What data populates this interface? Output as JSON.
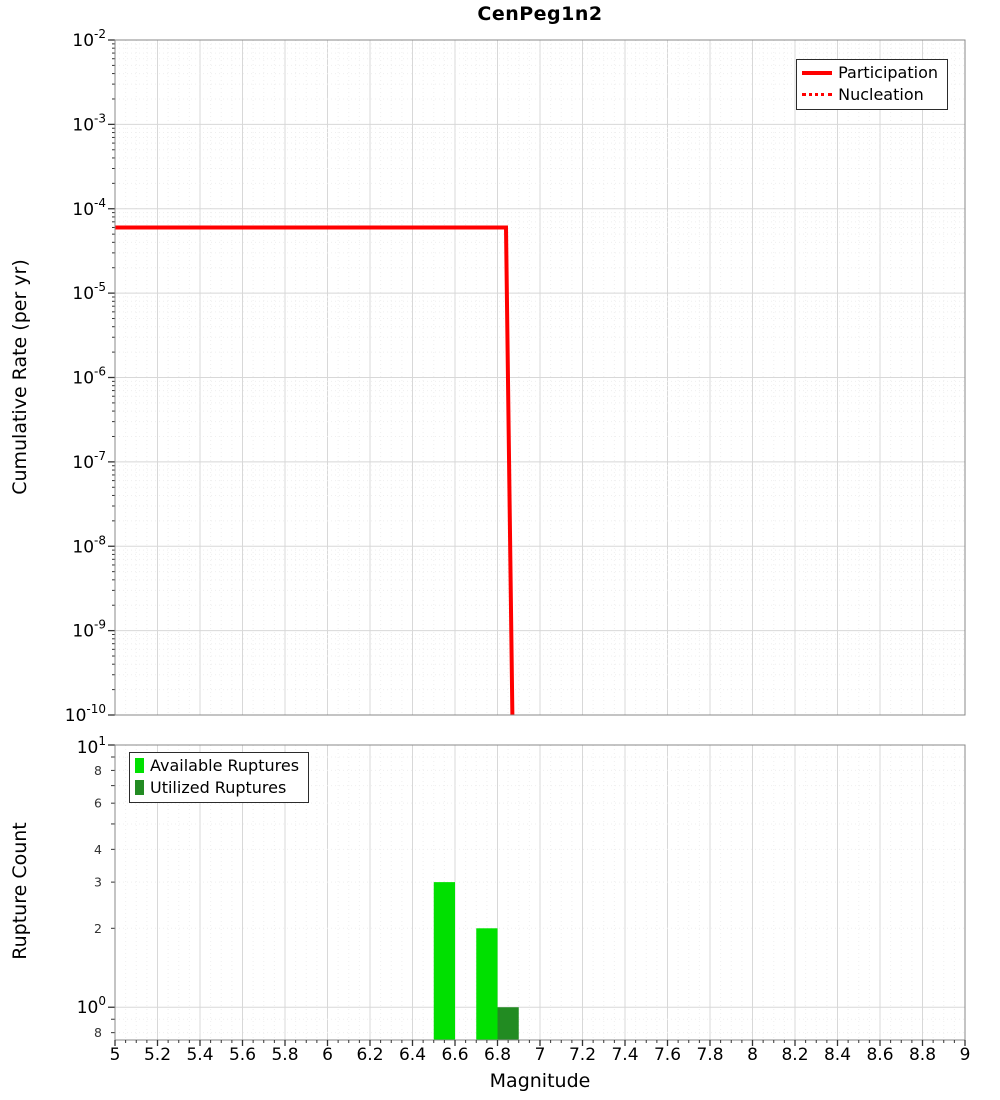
{
  "chart_data": [
    {
      "type": "line",
      "title": "CenPeg1n2",
      "ylabel": "Cumulative Rate (per yr)",
      "xlim": [
        5,
        9
      ],
      "y_scale": "log",
      "ylim": [
        1e-10,
        0.01
      ],
      "y_tick_exponents": [
        -2,
        -3,
        -4,
        -5,
        -6,
        -7,
        -8,
        -9,
        -10
      ],
      "grid": true,
      "legend_position": "top-right",
      "series": [
        {
          "name": "Participation",
          "style": "solid",
          "color": "#ff0000",
          "line_width": 4,
          "x": [
            5,
            6.84,
            6.87
          ],
          "y": [
            6e-05,
            6e-05,
            8e-11
          ]
        },
        {
          "name": "Nucleation",
          "style": "dotted",
          "color": "#ff0000",
          "line_width": 3,
          "x": [
            5,
            6.84,
            6.87
          ],
          "y": [
            6e-05,
            6e-05,
            8e-11
          ]
        }
      ]
    },
    {
      "type": "bar",
      "xlabel": "Magnitude",
      "ylabel": "Rupture Count",
      "xlim": [
        5,
        9
      ],
      "x_tick_labels": [
        "5",
        "5.2",
        "5.4",
        "5.6",
        "5.8",
        "6",
        "6.2",
        "6.4",
        "6.6",
        "6.8",
        "7",
        "7.2",
        "7.4",
        "7.6",
        "7.8",
        "8",
        "8.2",
        "8.4",
        "8.6",
        "8.8",
        "9"
      ],
      "y_scale": "log",
      "ylim": [
        0.75,
        10
      ],
      "bar_width": 0.1,
      "y_ticks": [
        {
          "value": 10,
          "base": "10",
          "sup": "1"
        },
        {
          "value": 8,
          "label": "8"
        },
        {
          "value": 6,
          "label": "6"
        },
        {
          "value": 4,
          "label": "4"
        },
        {
          "value": 3,
          "label": "3"
        },
        {
          "value": 2,
          "label": "2"
        },
        {
          "value": 1,
          "base": "10",
          "sup": "0"
        },
        {
          "value": 0.8,
          "label": "8"
        }
      ],
      "legend_position": "top-left",
      "series": [
        {
          "name": "Available Ruptures",
          "color": "#00e000",
          "bars": [
            {
              "x": 6.55,
              "count": 3
            },
            {
              "x": 6.75,
              "count": 2
            }
          ]
        },
        {
          "name": "Utilized Ruptures",
          "color": "#228B22",
          "bars": [
            {
              "x": 6.85,
              "count": 1
            }
          ]
        }
      ]
    }
  ]
}
